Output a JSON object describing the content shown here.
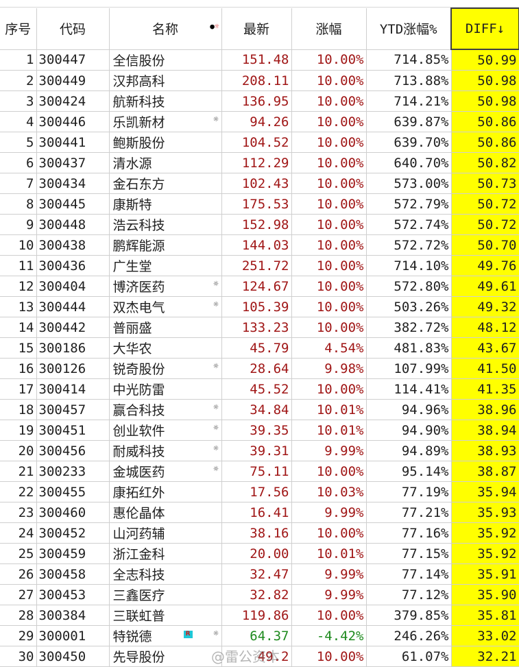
{
  "headers": {
    "idx": "序号",
    "code": "代码",
    "name": "名称",
    "last": "最新",
    "pct": "涨幅",
    "ytd": "YTD涨幅%",
    "diff": "DIFF↓"
  },
  "header_icons": {
    "dot": "●",
    "sun": "☼"
  },
  "rows": [
    {
      "idx": "1",
      "code": "300447",
      "name": "全信股份",
      "last": "151.48",
      "pct": "10.00%",
      "ytd": "714.85%",
      "diff": "50.99",
      "flag": "",
      "badge": "",
      "color": "red"
    },
    {
      "idx": "2",
      "code": "300449",
      "name": "汉邦高科",
      "last": "208.11",
      "pct": "10.00%",
      "ytd": "713.88%",
      "diff": "50.98",
      "flag": "",
      "badge": "",
      "color": "red"
    },
    {
      "idx": "3",
      "code": "300424",
      "name": "航新科技",
      "last": "136.95",
      "pct": "10.00%",
      "ytd": "714.21%",
      "diff": "50.98",
      "flag": "",
      "badge": "",
      "color": "red"
    },
    {
      "idx": "4",
      "code": "300446",
      "name": "乐凯新材",
      "last": "94.26",
      "pct": "10.00%",
      "ytd": "639.87%",
      "diff": "50.86",
      "flag": "☼",
      "badge": "",
      "color": "red"
    },
    {
      "idx": "5",
      "code": "300441",
      "name": "鲍斯股份",
      "last": "104.52",
      "pct": "10.00%",
      "ytd": "639.70%",
      "diff": "50.86",
      "flag": "",
      "badge": "",
      "color": "red"
    },
    {
      "idx": "6",
      "code": "300437",
      "name": "清水源",
      "last": "112.29",
      "pct": "10.00%",
      "ytd": "640.70%",
      "diff": "50.82",
      "flag": "",
      "badge": "",
      "color": "red"
    },
    {
      "idx": "7",
      "code": "300434",
      "name": "金石东方",
      "last": "102.43",
      "pct": "10.00%",
      "ytd": "573.00%",
      "diff": "50.73",
      "flag": "",
      "badge": "",
      "color": "red"
    },
    {
      "idx": "8",
      "code": "300445",
      "name": "康斯特",
      "last": "175.53",
      "pct": "10.00%",
      "ytd": "572.79%",
      "diff": "50.72",
      "flag": "",
      "badge": "",
      "color": "red"
    },
    {
      "idx": "9",
      "code": "300448",
      "name": "浩云科技",
      "last": "152.98",
      "pct": "10.00%",
      "ytd": "572.74%",
      "diff": "50.72",
      "flag": "",
      "badge": "",
      "color": "red"
    },
    {
      "idx": "10",
      "code": "300438",
      "name": "鹏辉能源",
      "last": "144.03",
      "pct": "10.00%",
      "ytd": "572.72%",
      "diff": "50.70",
      "flag": "",
      "badge": "",
      "color": "red"
    },
    {
      "idx": "11",
      "code": "300436",
      "name": "广生堂",
      "last": "251.72",
      "pct": "10.00%",
      "ytd": "714.10%",
      "diff": "49.76",
      "flag": "",
      "badge": "",
      "color": "red"
    },
    {
      "idx": "12",
      "code": "300404",
      "name": "博济医药",
      "last": "124.67",
      "pct": "10.00%",
      "ytd": "572.80%",
      "diff": "49.61",
      "flag": "☼",
      "badge": "",
      "color": "red"
    },
    {
      "idx": "13",
      "code": "300444",
      "name": "双杰电气",
      "last": "105.39",
      "pct": "10.00%",
      "ytd": "503.26%",
      "diff": "49.32",
      "flag": "☼",
      "badge": "",
      "color": "red"
    },
    {
      "idx": "14",
      "code": "300442",
      "name": "普丽盛",
      "last": "133.23",
      "pct": "10.00%",
      "ytd": "382.72%",
      "diff": "48.12",
      "flag": "",
      "badge": "",
      "color": "red"
    },
    {
      "idx": "15",
      "code": "300186",
      "name": "大华农",
      "last": "45.79",
      "pct": "4.54%",
      "ytd": "481.83%",
      "diff": "43.67",
      "flag": "",
      "badge": "",
      "color": "red"
    },
    {
      "idx": "16",
      "code": "300126",
      "name": "锐奇股份",
      "last": "28.64",
      "pct": "9.98%",
      "ytd": "107.99%",
      "diff": "41.50",
      "flag": "☼",
      "badge": "",
      "color": "red"
    },
    {
      "idx": "17",
      "code": "300414",
      "name": "中光防雷",
      "last": "45.52",
      "pct": "10.00%",
      "ytd": "114.41%",
      "diff": "41.35",
      "flag": "",
      "badge": "",
      "color": "red"
    },
    {
      "idx": "18",
      "code": "300457",
      "name": "赢合科技",
      "last": "34.84",
      "pct": "10.01%",
      "ytd": "94.96%",
      "diff": "38.96",
      "flag": "☼",
      "badge": "",
      "color": "red"
    },
    {
      "idx": "19",
      "code": "300451",
      "name": "创业软件",
      "last": "39.35",
      "pct": "10.01%",
      "ytd": "94.90%",
      "diff": "38.94",
      "flag": "☼",
      "badge": "",
      "color": "red"
    },
    {
      "idx": "20",
      "code": "300456",
      "name": "耐威科技",
      "last": "39.31",
      "pct": "9.99%",
      "ytd": "94.89%",
      "diff": "38.93",
      "flag": "☼",
      "badge": "",
      "color": "red"
    },
    {
      "idx": "21",
      "code": "300233",
      "name": "金城医药",
      "last": "75.11",
      "pct": "10.00%",
      "ytd": "95.14%",
      "diff": "38.87",
      "flag": "☼",
      "badge": "",
      "color": "red"
    },
    {
      "idx": "22",
      "code": "300455",
      "name": "康拓红外",
      "last": "17.56",
      "pct": "10.03%",
      "ytd": "77.19%",
      "diff": "35.94",
      "flag": "",
      "badge": "",
      "color": "red"
    },
    {
      "idx": "23",
      "code": "300460",
      "name": "惠伦晶体",
      "last": "16.41",
      "pct": "9.99%",
      "ytd": "77.21%",
      "diff": "35.93",
      "flag": "",
      "badge": "",
      "color": "red"
    },
    {
      "idx": "24",
      "code": "300452",
      "name": "山河药辅",
      "last": "38.16",
      "pct": "10.00%",
      "ytd": "77.16%",
      "diff": "35.92",
      "flag": "",
      "badge": "",
      "color": "red"
    },
    {
      "idx": "25",
      "code": "300459",
      "name": "浙江金科",
      "last": "20.00",
      "pct": "10.01%",
      "ytd": "77.15%",
      "diff": "35.92",
      "flag": "",
      "badge": "",
      "color": "red"
    },
    {
      "idx": "26",
      "code": "300458",
      "name": "全志科技",
      "last": "32.47",
      "pct": "9.99%",
      "ytd": "77.14%",
      "diff": "35.91",
      "flag": "",
      "badge": "",
      "color": "red"
    },
    {
      "idx": "27",
      "code": "300453",
      "name": "三鑫医疗",
      "last": "32.82",
      "pct": "9.99%",
      "ytd": "77.12%",
      "diff": "35.90",
      "flag": "",
      "badge": "",
      "color": "red"
    },
    {
      "idx": "28",
      "code": "300384",
      "name": "三联虹普",
      "last": "119.86",
      "pct": "10.00%",
      "ytd": "379.85%",
      "diff": "35.81",
      "flag": "",
      "badge": "",
      "color": "red"
    },
    {
      "idx": "29",
      "code": "300001",
      "name": "特锐德",
      "last": "64.37",
      "pct": "-4.42%",
      "ytd": "246.26%",
      "diff": "33.02",
      "flag": "☼",
      "badge": "R",
      "color": "green"
    },
    {
      "idx": "30",
      "code": "300450",
      "name": "先导股份",
      "last": "49.2",
      "pct": "10.00%",
      "ytd": "61.07%",
      "diff": "32.21",
      "flag": "",
      "badge": "",
      "color": "red"
    }
  ],
  "watermark": "@雷公资本",
  "colors": {
    "up": "#a01616",
    "down": "#1e8a1e",
    "diff_bg": "#ffff00"
  }
}
